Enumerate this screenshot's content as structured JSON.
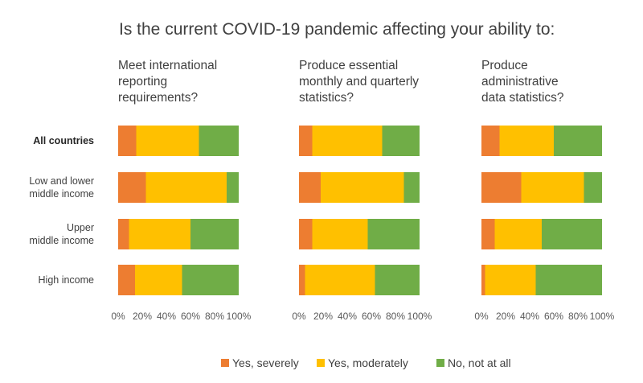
{
  "title": "Is the current COVID-19 pandemic affecting your ability to:",
  "colors": {
    "Yes, severely": "#ed7d31",
    "Yes, moderately": "#ffc000",
    "No, not at all": "#70ad47"
  },
  "chart_data": [
    {
      "type": "bar",
      "orientation": "horizontal",
      "stacked": "100%",
      "title": "Meet international reporting requirements?",
      "title_lines": [
        "Meet international",
        "reporting",
        "requirements?"
      ],
      "categories": [
        "All countries",
        "Low and lower middle income",
        "Upper middle income",
        "High income"
      ],
      "category_lines": [
        [
          "All countries"
        ],
        [
          "Low and lower",
          "middle income"
        ],
        [
          "Upper",
          "middle income"
        ],
        [
          "High income"
        ]
      ],
      "series": [
        {
          "name": "Yes, severely",
          "values": [
            15,
            23,
            9,
            14
          ]
        },
        {
          "name": "Yes, moderately",
          "values": [
            52,
            67,
            51,
            39
          ]
        },
        {
          "name": "No, not at all",
          "values": [
            33,
            10,
            40,
            47
          ]
        }
      ],
      "xlim": [
        0,
        100
      ],
      "x_ticks": [
        "0%",
        "20%",
        "40%",
        "60%",
        "80%",
        "100%"
      ]
    },
    {
      "type": "bar",
      "orientation": "horizontal",
      "stacked": "100%",
      "title": "Produce essential monthly and quarterly statistics?",
      "title_lines": [
        "Produce essential",
        "monthly and quarterly",
        "statistics?"
      ],
      "categories": [
        "All countries",
        "Low and lower middle income",
        "Upper middle income",
        "High income"
      ],
      "series": [
        {
          "name": "Yes, severely",
          "values": [
            11,
            18,
            11,
            5
          ]
        },
        {
          "name": "Yes, moderately",
          "values": [
            58,
            69,
            46,
            58
          ]
        },
        {
          "name": "No, not at all",
          "values": [
            31,
            13,
            43,
            37
          ]
        }
      ],
      "xlim": [
        0,
        100
      ],
      "x_ticks": [
        "0%",
        "20%",
        "40%",
        "60%",
        "80%",
        "100%"
      ]
    },
    {
      "type": "bar",
      "orientation": "horizontal",
      "stacked": "100%",
      "title": "Produce administrative data statistics?",
      "title_lines": [
        "Produce",
        "administrative",
        "data statistics?"
      ],
      "categories": [
        "All countries",
        "Low and lower middle income",
        "Upper middle income",
        "High income"
      ],
      "series": [
        {
          "name": "Yes, severely",
          "values": [
            15,
            33,
            11,
            3
          ]
        },
        {
          "name": "Yes, moderately",
          "values": [
            45,
            52,
            39,
            42
          ]
        },
        {
          "name": "No, not at all",
          "values": [
            40,
            15,
            50,
            55
          ]
        }
      ],
      "xlim": [
        0,
        100
      ],
      "x_ticks": [
        "0%",
        "20%",
        "40%",
        "60%",
        "80%",
        "100%"
      ]
    }
  ],
  "legend": {
    "position": "bottom",
    "items": [
      "Yes, severely",
      "Yes, moderately",
      "No, not at all"
    ]
  }
}
